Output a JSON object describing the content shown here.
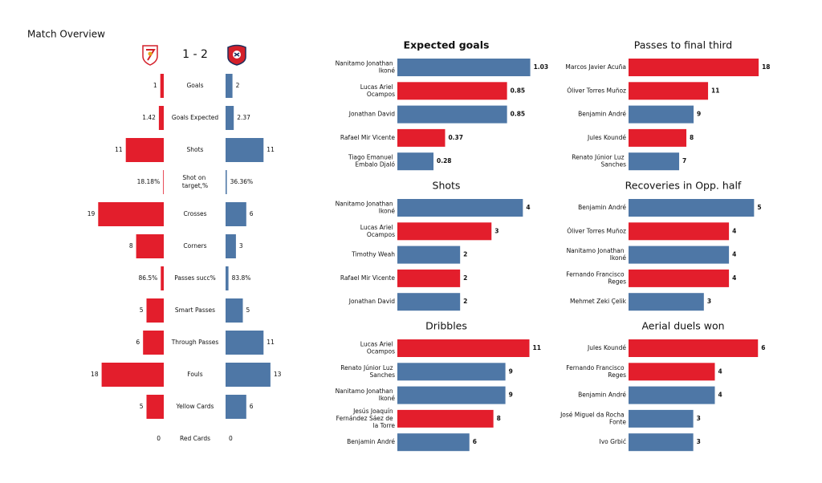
{
  "chart_data": [
    {
      "type": "butterfly",
      "title": "Match Overview",
      "score": "1 - 2",
      "categories": [
        "Goals",
        "Goals Expected",
        "Shots",
        "Shot on target,%",
        "Crosses",
        "Corners",
        "Passes succ%",
        "Smart Passes",
        "Through Passes",
        "Fouls",
        "Yellow Cards",
        "Red Cards"
      ],
      "xlim": [
        0,
        20
      ],
      "series": [
        {
          "color": "#e31e2c",
          "values": [
            1,
            1.42,
            11,
            0.1818,
            19,
            8,
            0.865,
            5,
            6,
            18,
            5,
            0
          ],
          "value_labels": [
            "1",
            "1.42",
            "11",
            "18.18%",
            "19",
            "8",
            "86.5%",
            "5",
            "6",
            "18",
            "5",
            "0"
          ]
        },
        {
          "color": "#4e77a6",
          "values": [
            2,
            2.37,
            11,
            0.3636,
            6,
            3,
            0.838,
            5,
            11,
            13,
            6,
            0
          ],
          "value_labels": [
            "2",
            "2.37",
            "11",
            "36.36%",
            "6",
            "3",
            "83.8%",
            "5",
            "11",
            "13",
            "6",
            "0"
          ]
        }
      ]
    },
    {
      "type": "hbar",
      "title": "Expected goals",
      "categories": [
        "Nanitamo Jonathan Ikoné",
        "Lucas Ariel Ocampos",
        "Jonathan David",
        "Rafael Mir Vicente",
        "Tiago Emanuel Embalo Djaló"
      ],
      "values": [
        1.03,
        0.85,
        0.85,
        0.37,
        0.28
      ],
      "colors": [
        "#4e77a6",
        "#e31e2c",
        "#4e77a6",
        "#e31e2c",
        "#4e77a6"
      ],
      "xlim": [
        0,
        1.07
      ]
    },
    {
      "type": "hbar",
      "title": "Passes to final third",
      "categories": [
        "Marcos Javier Acuña",
        "Óliver Torres Muñoz",
        "Benjamin André",
        "Jules Koundé",
        "Renato Júnior Luz Sanches"
      ],
      "values": [
        18,
        11,
        9,
        8,
        7
      ],
      "colors": [
        "#e31e2c",
        "#e31e2c",
        "#4e77a6",
        "#e31e2c",
        "#4e77a6"
      ],
      "xlim": [
        0,
        19.1
      ]
    },
    {
      "type": "hbar",
      "title": "Shots",
      "categories": [
        "Nanitamo Jonathan Ikoné",
        "Lucas Ariel Ocampos",
        "Timothy Weah",
        "Rafael Mir Vicente",
        "Jonathan David"
      ],
      "values": [
        4,
        3,
        2,
        2,
        2
      ],
      "colors": [
        "#4e77a6",
        "#e31e2c",
        "#4e77a6",
        "#e31e2c",
        "#4e77a6"
      ],
      "xlim": [
        0,
        4.4
      ]
    },
    {
      "type": "hbar",
      "title": "Recoveries in Opp. half",
      "categories": [
        "Benjamin André",
        "Óliver Torres Muñoz",
        "Nanitamo Jonathan Ikoné",
        "Fernando Francisco Reges",
        "Mehmet Zeki Çelik"
      ],
      "values": [
        5,
        4,
        4,
        4,
        3
      ],
      "colors": [
        "#4e77a6",
        "#e31e2c",
        "#4e77a6",
        "#e31e2c",
        "#4e77a6"
      ],
      "xlim": [
        0,
        5.5
      ]
    },
    {
      "type": "hbar",
      "title": "Dribbles",
      "categories": [
        "Lucas Ariel Ocampos",
        "Renato Júnior Luz Sanches",
        "Nanitamo Jonathan Ikoné",
        "Jesús Joaquín Fernández Sáez de la Torre",
        "Benjamin André"
      ],
      "values": [
        11,
        9,
        9,
        8,
        6
      ],
      "colors": [
        "#e31e2c",
        "#4e77a6",
        "#4e77a6",
        "#e31e2c",
        "#4e77a6"
      ],
      "xlim": [
        0,
        11.5
      ]
    },
    {
      "type": "hbar",
      "title": "Aerial duels won",
      "categories": [
        "Jules Koundé",
        "Fernando Francisco Reges",
        "Benjamin André",
        "José Miguel da Rocha Fonte",
        "Ivo Grbić"
      ],
      "values": [
        6,
        4,
        4,
        3,
        3
      ],
      "colors": [
        "#e31e2c",
        "#e31e2c",
        "#4e77a6",
        "#4e77a6",
        "#4e77a6"
      ],
      "xlim": [
        0,
        6.4
      ]
    }
  ]
}
